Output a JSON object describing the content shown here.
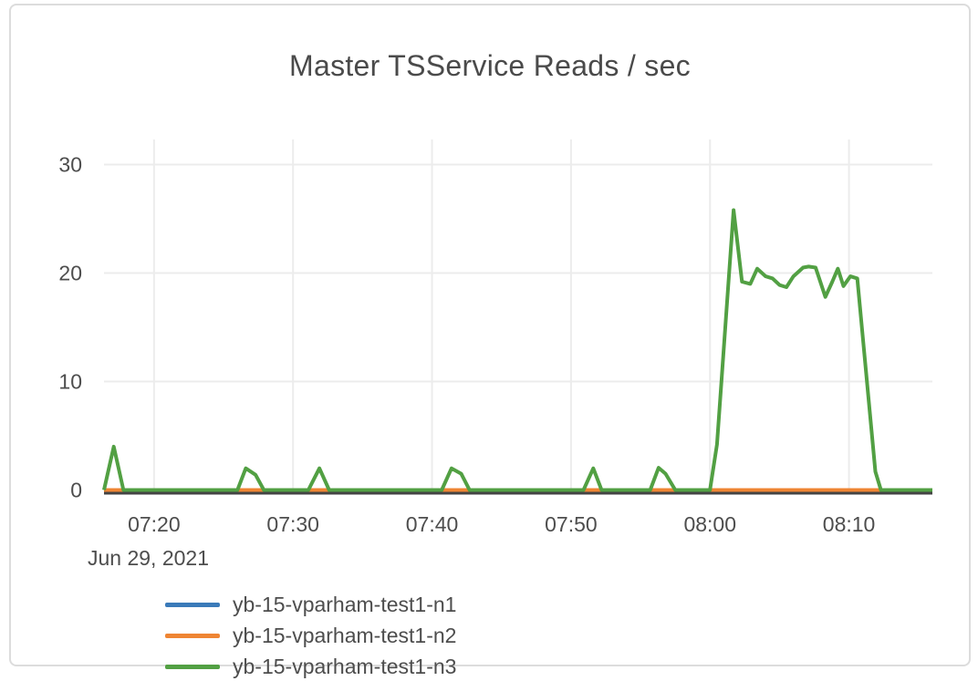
{
  "chart_data": {
    "type": "line",
    "title": "Master TSService Reads / sec",
    "x_axis": {
      "date_label": "Jun 29, 2021",
      "range": [
        "07:16:24",
        "08:16:00"
      ],
      "ticks": [
        {
          "t": "07:20:00",
          "label": "07:20"
        },
        {
          "t": "07:30:00",
          "label": "07:30"
        },
        {
          "t": "07:40:00",
          "label": "07:40"
        },
        {
          "t": "07:50:00",
          "label": "07:50"
        },
        {
          "t": "08:00:00",
          "label": "08:00"
        },
        {
          "t": "08:10:00",
          "label": "08:10"
        }
      ]
    },
    "y_axis": {
      "ticks": [
        0,
        10,
        20,
        30
      ],
      "range": [
        0,
        32.3
      ]
    },
    "grid": true,
    "legend_position": "bottom",
    "colors": {
      "grid": "#ececec",
      "zero_line": "#444444",
      "text": "#4d4d4d"
    },
    "series": [
      {
        "name": "yb-15-vparham-test1-n1",
        "color": "#3a7ab9",
        "points": [
          [
            "07:16:24",
            0
          ],
          [
            "08:16:00",
            0
          ]
        ]
      },
      {
        "name": "yb-15-vparham-test1-n2",
        "color": "#ef8533",
        "points": [
          [
            "07:16:24",
            0
          ],
          [
            "08:16:00",
            0
          ]
        ]
      },
      {
        "name": "yb-15-vparham-test1-n3",
        "color": "#52a043",
        "points": [
          [
            "07:16:24",
            0
          ],
          [
            "07:17:06",
            4.0
          ],
          [
            "07:17:48",
            0
          ],
          [
            "07:26:00",
            0
          ],
          [
            "07:26:36",
            2.0
          ],
          [
            "07:27:18",
            1.4
          ],
          [
            "07:27:54",
            0
          ],
          [
            "07:31:06",
            0
          ],
          [
            "07:31:54",
            2.0
          ],
          [
            "07:32:36",
            0
          ],
          [
            "07:40:42",
            0
          ],
          [
            "07:41:24",
            2.0
          ],
          [
            "07:42:06",
            1.5
          ],
          [
            "07:42:42",
            0
          ],
          [
            "07:50:54",
            0
          ],
          [
            "07:51:36",
            2.0
          ],
          [
            "07:52:12",
            0
          ],
          [
            "07:55:42",
            0
          ],
          [
            "07:56:18",
            2.05
          ],
          [
            "07:56:48",
            1.5
          ],
          [
            "07:57:30",
            0
          ],
          [
            "08:00:00",
            0
          ],
          [
            "08:00:30",
            4.2
          ],
          [
            "08:01:42",
            25.8
          ],
          [
            "08:02:18",
            19.2
          ],
          [
            "08:02:54",
            19.0
          ],
          [
            "08:03:24",
            20.4
          ],
          [
            "08:04:00",
            19.7
          ],
          [
            "08:04:30",
            19.5
          ],
          [
            "08:05:00",
            18.9
          ],
          [
            "08:05:30",
            18.7
          ],
          [
            "08:06:00",
            19.7
          ],
          [
            "08:06:42",
            20.5
          ],
          [
            "08:07:06",
            20.6
          ],
          [
            "08:07:36",
            20.5
          ],
          [
            "08:08:18",
            17.8
          ],
          [
            "08:08:48",
            19.2
          ],
          [
            "08:09:12",
            20.4
          ],
          [
            "08:09:36",
            18.8
          ],
          [
            "08:10:06",
            19.7
          ],
          [
            "08:10:36",
            19.5
          ],
          [
            "08:11:54",
            1.7
          ],
          [
            "08:12:18",
            0
          ],
          [
            "08:16:00",
            0
          ]
        ]
      }
    ]
  }
}
